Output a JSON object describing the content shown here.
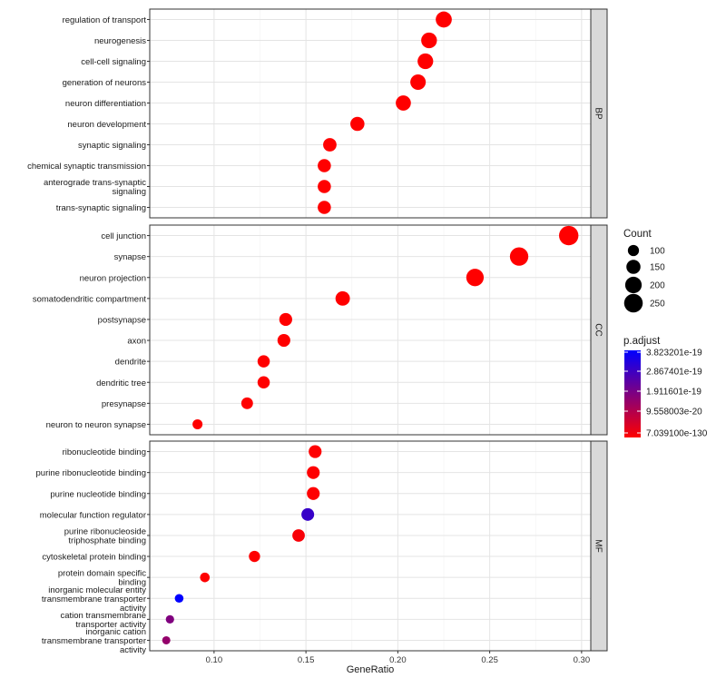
{
  "chart_data": {
    "type": "scatter",
    "xlabel": "GeneRatio",
    "xlim": [
      0.065,
      0.305
    ],
    "x_ticks": [
      0.1,
      0.15,
      0.2,
      0.25,
      0.3
    ],
    "x_tick_labels": [
      "0.10",
      "0.15",
      "0.20",
      "0.25",
      "0.30"
    ],
    "grid": true,
    "facets": [
      {
        "label": "BP",
        "points": [
          {
            "term": "regulation of transport",
            "gene_ratio": 0.225,
            "count": 190,
            "p_adjust": 7.0391e-130
          },
          {
            "term": "neurogenesis",
            "gene_ratio": 0.217,
            "count": 183,
            "p_adjust": 7.0391e-130
          },
          {
            "term": "cell-cell signaling",
            "gene_ratio": 0.215,
            "count": 181,
            "p_adjust": 7.0391e-130
          },
          {
            "term": "generation of neurons",
            "gene_ratio": 0.211,
            "count": 177,
            "p_adjust": 7.0391e-130
          },
          {
            "term": "neuron differentiation",
            "gene_ratio": 0.203,
            "count": 170,
            "p_adjust": 7.0391e-130
          },
          {
            "term": "neuron development",
            "gene_ratio": 0.178,
            "count": 150,
            "p_adjust": 7.0391e-130
          },
          {
            "term": "synaptic signaling",
            "gene_ratio": 0.163,
            "count": 137,
            "p_adjust": 7.0391e-130
          },
          {
            "term": "chemical synaptic transmission",
            "gene_ratio": 0.16,
            "count": 134,
            "p_adjust": 7.0391e-130
          },
          {
            "term": "anterograde trans-synaptic\nsignaling",
            "gene_ratio": 0.16,
            "count": 134,
            "p_adjust": 7.0391e-130
          },
          {
            "term": "trans-synaptic signaling",
            "gene_ratio": 0.16,
            "count": 134,
            "p_adjust": 7.0391e-130
          }
        ]
      },
      {
        "label": "CC",
        "points": [
          {
            "term": "cell junction",
            "gene_ratio": 0.293,
            "count": 270,
            "p_adjust": 7.0391e-130
          },
          {
            "term": "synapse",
            "gene_ratio": 0.266,
            "count": 245,
            "p_adjust": 7.0391e-130
          },
          {
            "term": "neuron projection",
            "gene_ratio": 0.242,
            "count": 222,
            "p_adjust": 7.0391e-130
          },
          {
            "term": "somatodendritic compartment",
            "gene_ratio": 0.17,
            "count": 156,
            "p_adjust": 7.0391e-130
          },
          {
            "term": "postsynapse",
            "gene_ratio": 0.139,
            "count": 128,
            "p_adjust": 7.0391e-130
          },
          {
            "term": "axon",
            "gene_ratio": 0.138,
            "count": 127,
            "p_adjust": 7.0391e-130
          },
          {
            "term": "dendrite",
            "gene_ratio": 0.127,
            "count": 117,
            "p_adjust": 7.0391e-130
          },
          {
            "term": "dendritic tree",
            "gene_ratio": 0.127,
            "count": 117,
            "p_adjust": 7.0391e-130
          },
          {
            "term": "presynapse",
            "gene_ratio": 0.118,
            "count": 108,
            "p_adjust": 7.0391e-130
          },
          {
            "term": "neuron to neuron synapse",
            "gene_ratio": 0.091,
            "count": 83,
            "p_adjust": 7.0391e-130
          }
        ]
      },
      {
        "label": "MF",
        "points": [
          {
            "term": "ribonucleotide binding",
            "gene_ratio": 0.155,
            "count": 128,
            "p_adjust": 2e-21
          },
          {
            "term": "purine ribonucleotide binding",
            "gene_ratio": 0.154,
            "count": 127,
            "p_adjust": 2e-21
          },
          {
            "term": "purine nucleotide binding",
            "gene_ratio": 0.154,
            "count": 127,
            "p_adjust": 2e-21
          },
          {
            "term": "molecular function regulator",
            "gene_ratio": 0.151,
            "count": 125,
            "p_adjust": 3e-19
          },
          {
            "term": "purine ribonucleoside\ntriphosphate binding",
            "gene_ratio": 0.146,
            "count": 121,
            "p_adjust": 1e-20
          },
          {
            "term": "cytoskeletal protein binding",
            "gene_ratio": 0.122,
            "count": 101,
            "p_adjust": 2e-21
          },
          {
            "term": "protein domain specific\nbinding",
            "gene_ratio": 0.095,
            "count": 79,
            "p_adjust": 2e-21
          },
          {
            "term": "inorganic molecular entity\ntransmembrane transporter\nactivity",
            "gene_ratio": 0.081,
            "count": 67,
            "p_adjust": 3.823201e-19
          },
          {
            "term": "cation transmembrane\ntransporter activity",
            "gene_ratio": 0.076,
            "count": 63,
            "p_adjust": 1.9e-19
          },
          {
            "term": "inorganic cation\ntransmembrane transporter\nactivity",
            "gene_ratio": 0.074,
            "count": 61,
            "p_adjust": 1.6e-19
          }
        ]
      }
    ],
    "legend_count": {
      "title": "Count",
      "values": [
        100,
        150,
        200,
        250
      ],
      "labels": [
        "100",
        "150",
        "200",
        "250"
      ]
    },
    "legend_color": {
      "title": "p.adjust",
      "tick_values": [
        3.823201e-19,
        2.867401e-19,
        1.911601e-19,
        9.558003e-20,
        7.0391e-130
      ],
      "tick_labels": [
        "3.823201e-19",
        "2.867401e-19",
        "1.911601e-19",
        "9.558003e-20",
        "7.039100e-130"
      ],
      "min": 7.0391e-130,
      "max": 3.823201e-19,
      "low_color": "#ff0000",
      "high_color": "#0000ff"
    },
    "legend_placement": "right"
  }
}
